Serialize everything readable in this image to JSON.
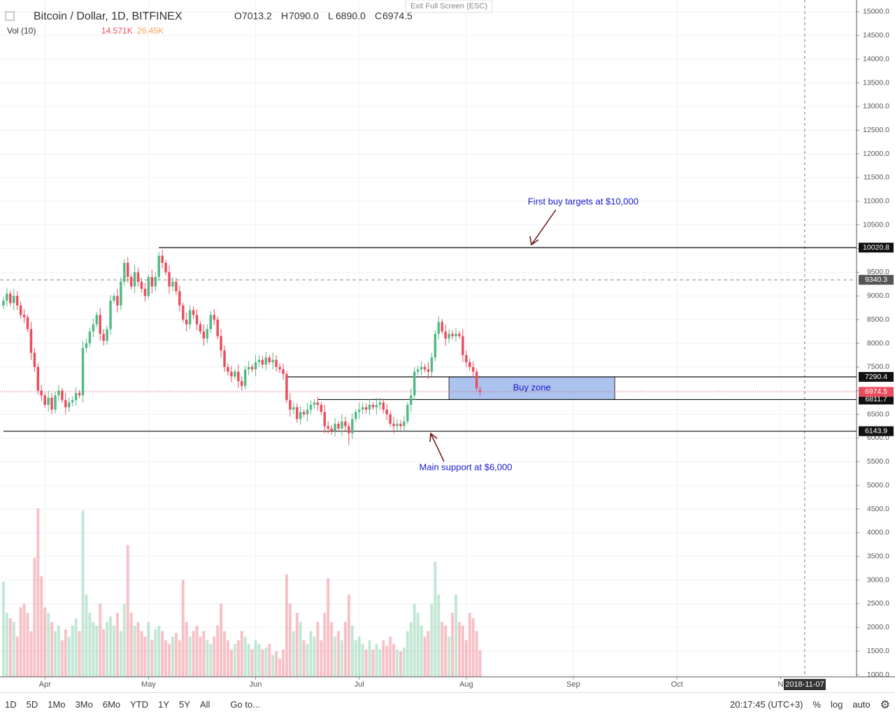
{
  "header": {
    "symbol": "Bitcoin / Dollar, 1D, BITFINEX",
    "ohlc": [
      {
        "key": "O",
        "value": "7013.2"
      },
      {
        "key": "H",
        "value": "7090.0"
      },
      {
        "key": "L",
        "value": "6890.0"
      },
      {
        "key": "C",
        "value": "6974.5"
      }
    ],
    "vol_title": "Vol (10)",
    "vol_value": "14.571K",
    "vol_ma": "26.45K",
    "exit": "Exit Full Screen (ESC)"
  },
  "chart_data": {
    "type": "candlestick",
    "ylim": [
      956,
      15250
    ],
    "xlim": [
      -1,
      247
    ],
    "volume_lim": [
      0,
      370
    ],
    "yticks": [
      {
        "value": 1000,
        "label": "1000.0"
      },
      {
        "value": 1500,
        "label": "1500.0"
      },
      {
        "value": 2000,
        "label": "2000.0"
      },
      {
        "value": 2500,
        "label": "2500.0"
      },
      {
        "value": 3000,
        "label": "3000.0"
      },
      {
        "value": 3500,
        "label": "3500.0"
      },
      {
        "value": 4000,
        "label": "4000.0"
      },
      {
        "value": 4500,
        "label": "4500.0"
      },
      {
        "value": 5000,
        "label": "5000.0"
      },
      {
        "value": 5500,
        "label": "5500.0"
      },
      {
        "value": 6000,
        "label": "6000.0"
      },
      {
        "value": 6500,
        "label": "6500.0"
      },
      {
        "value": 7000,
        "label": "7000.0"
      },
      {
        "value": 7500,
        "label": "7500.0"
      },
      {
        "value": 8000,
        "label": "8000.0"
      },
      {
        "value": 8500,
        "label": "8500.0"
      },
      {
        "value": 9000,
        "label": "9000.0"
      },
      {
        "value": 9500,
        "label": "9500.0"
      },
      {
        "value": 10000,
        "label": "10000.0"
      },
      {
        "value": 10500,
        "label": "10500.0"
      },
      {
        "value": 11000,
        "label": "11000.0"
      },
      {
        "value": 11500,
        "label": "11500.0"
      },
      {
        "value": 12000,
        "label": "12000.0"
      },
      {
        "value": 12500,
        "label": "12500.0"
      },
      {
        "value": 13000,
        "label": "13000.0"
      },
      {
        "value": 13500,
        "label": "13500.0"
      },
      {
        "value": 14000,
        "label": "14000.0"
      },
      {
        "value": 14500,
        "label": "14500.0"
      },
      {
        "value": 15000,
        "label": "15000.0"
      }
    ],
    "xticks": [
      {
        "value": 12,
        "label": "Apr"
      },
      {
        "value": 42,
        "label": "May"
      },
      {
        "value": 73,
        "label": "Jun"
      },
      {
        "value": 103,
        "label": "Jul"
      },
      {
        "value": 134,
        "label": "Aug"
      },
      {
        "value": 165,
        "label": "Sep"
      },
      {
        "value": 195,
        "label": "Oct"
      },
      {
        "value": 225,
        "label": "N"
      }
    ],
    "grid": true,
    "up_color": "#53b987",
    "down_color": "#eb4d5c",
    "crosshair": {
      "x": 232,
      "label": "2018-11-07"
    },
    "levels": [
      {
        "value": 10020.8,
        "start": 45
      },
      {
        "value": 7290.4,
        "start": 82
      },
      {
        "value": 6811.7,
        "start": 91
      },
      {
        "value": 6143.9,
        "start": 0
      }
    ],
    "dashed_level": 9340.3,
    "last_price": 6974.5,
    "buy_zone": {
      "label": "Buy zone",
      "x": [
        129,
        177
      ],
      "y": [
        6811.7,
        7290.4
      ]
    },
    "annotations": [
      "First buy targets at $10,000",
      "Main support at $6,000"
    ],
    "ohlc": [
      [
        8800,
        8980,
        8720,
        8900
      ],
      [
        8900,
        9170,
        8780,
        9050
      ],
      [
        9050,
        9110,
        8790,
        8850
      ],
      [
        8850,
        9150,
        8700,
        9000
      ],
      [
        9000,
        9100,
        8700,
        8800
      ],
      [
        8800,
        8880,
        8520,
        8600
      ],
      [
        8600,
        8720,
        8430,
        8550
      ],
      [
        8550,
        8610,
        8240,
        8300
      ],
      [
        8300,
        8450,
        7650,
        7800
      ],
      [
        7800,
        7900,
        7400,
        7500
      ],
      [
        7500,
        7580,
        6920,
        7000
      ],
      [
        7000,
        7120,
        6780,
        6900
      ],
      [
        6900,
        6960,
        6640,
        6700
      ],
      [
        6700,
        7000,
        6550,
        6850
      ],
      [
        6850,
        6950,
        6500,
        6600
      ],
      [
        6600,
        6980,
        6520,
        6900
      ],
      [
        6900,
        7120,
        6780,
        7000
      ],
      [
        7000,
        7060,
        6740,
        6800
      ],
      [
        6800,
        6950,
        6500,
        6650
      ],
      [
        6650,
        6850,
        6550,
        6750
      ],
      [
        6750,
        6880,
        6670,
        6800
      ],
      [
        6800,
        7070,
        6680,
        6950
      ],
      [
        6950,
        7010,
        6840,
        6900
      ],
      [
        6900,
        8050,
        6750,
        7900
      ],
      [
        7900,
        8100,
        7800,
        8000
      ],
      [
        8000,
        8330,
        7920,
        8250
      ],
      [
        8250,
        8520,
        8130,
        8400
      ],
      [
        8400,
        8660,
        8340,
        8600
      ],
      [
        8600,
        8750,
        8050,
        8200
      ],
      [
        8200,
        8300,
        7950,
        8050
      ],
      [
        8050,
        8380,
        7970,
        8300
      ],
      [
        8300,
        9020,
        8180,
        8900
      ],
      [
        8900,
        9060,
        8840,
        9000
      ],
      [
        9000,
        9150,
        8650,
        8800
      ],
      [
        8800,
        9400,
        8700,
        9300
      ],
      [
        9300,
        9780,
        9220,
        9700
      ],
      [
        9700,
        9820,
        9280,
        9400
      ],
      [
        9400,
        9460,
        9140,
        9200
      ],
      [
        9200,
        9650,
        9050,
        9500
      ],
      [
        9500,
        9600,
        9200,
        9300
      ],
      [
        9300,
        9380,
        9070,
        9150
      ],
      [
        9150,
        9270,
        8880,
        9000
      ],
      [
        9000,
        9460,
        8940,
        9400
      ],
      [
        9400,
        9550,
        9050,
        9200
      ],
      [
        9200,
        9500,
        9100,
        9400
      ],
      [
        9400,
        9930,
        9320,
        9850
      ],
      [
        9850,
        9970,
        9580,
        9700
      ],
      [
        9700,
        9760,
        9440,
        9500
      ],
      [
        9500,
        9650,
        9050,
        9200
      ],
      [
        9200,
        9400,
        9100,
        9300
      ],
      [
        9300,
        9380,
        9020,
        9100
      ],
      [
        9100,
        9220,
        8680,
        8800
      ],
      [
        8800,
        8860,
        8440,
        8500
      ],
      [
        8500,
        8650,
        8250,
        8400
      ],
      [
        8400,
        8800,
        8300,
        8700
      ],
      [
        8700,
        8780,
        8520,
        8600
      ],
      [
        8600,
        8720,
        8280,
        8400
      ],
      [
        8400,
        8460,
        8190,
        8250
      ],
      [
        8250,
        8400,
        7950,
        8100
      ],
      [
        8100,
        8400,
        8000,
        8300
      ],
      [
        8300,
        8680,
        8220,
        8600
      ],
      [
        8600,
        8720,
        8380,
        8500
      ],
      [
        8500,
        8560,
        8090,
        8150
      ],
      [
        8150,
        8300,
        7700,
        7850
      ],
      [
        7850,
        7950,
        7400,
        7500
      ],
      [
        7500,
        7580,
        7320,
        7400
      ],
      [
        7400,
        7520,
        7180,
        7300
      ],
      [
        7300,
        7460,
        7240,
        7400
      ],
      [
        7400,
        7550,
        7050,
        7200
      ],
      [
        7200,
        7300,
        7000,
        7100
      ],
      [
        7100,
        7530,
        7020,
        7450
      ],
      [
        7450,
        7620,
        7330,
        7500
      ],
      [
        7500,
        7560,
        7390,
        7450
      ],
      [
        7450,
        7750,
        7300,
        7600
      ],
      [
        7600,
        7750,
        7500,
        7650
      ],
      [
        7650,
        7730,
        7470,
        7550
      ],
      [
        7550,
        7820,
        7430,
        7700
      ],
      [
        7700,
        7760,
        7540,
        7600
      ],
      [
        7600,
        7800,
        7450,
        7650
      ],
      [
        7650,
        7750,
        7400,
        7500
      ],
      [
        7500,
        7580,
        7370,
        7450
      ],
      [
        7450,
        7570,
        7230,
        7350
      ],
      [
        7350,
        7410,
        6740,
        6800
      ],
      [
        6800,
        6950,
        6450,
        6600
      ],
      [
        6600,
        6750,
        6500,
        6650
      ],
      [
        6650,
        6730,
        6320,
        6400
      ],
      [
        6400,
        6670,
        6280,
        6550
      ],
      [
        6550,
        6610,
        6440,
        6500
      ],
      [
        6500,
        6750,
        6350,
        6600
      ],
      [
        6600,
        6800,
        6500,
        6700
      ],
      [
        6700,
        6830,
        6620,
        6750
      ],
      [
        6750,
        6870,
        6580,
        6700
      ],
      [
        6700,
        6760,
        6490,
        6550
      ],
      [
        6550,
        6700,
        6100,
        6250
      ],
      [
        6250,
        6350,
        6100,
        6200
      ],
      [
        6200,
        6280,
        6070,
        6150
      ],
      [
        6150,
        6420,
        6030,
        6300
      ],
      [
        6300,
        6360,
        6140,
        6200
      ],
      [
        6200,
        6500,
        6050,
        6350
      ],
      [
        6350,
        6450,
        6150,
        6250
      ],
      [
        6250,
        6330,
        5850,
        6100
      ],
      [
        6100,
        6520,
        5980,
        6400
      ],
      [
        6400,
        6610,
        6340,
        6550
      ],
      [
        6550,
        6750,
        6400,
        6600
      ],
      [
        6600,
        6750,
        6500,
        6650
      ],
      [
        6650,
        6730,
        6520,
        6600
      ],
      [
        6600,
        6820,
        6480,
        6700
      ],
      [
        6700,
        6760,
        6590,
        6650
      ],
      [
        6650,
        6850,
        6500,
        6700
      ],
      [
        6700,
        6850,
        6600,
        6750
      ],
      [
        6750,
        6830,
        6520,
        6600
      ],
      [
        6600,
        6720,
        6380,
        6500
      ],
      [
        6500,
        6560,
        6240,
        6300
      ],
      [
        6300,
        6450,
        6100,
        6250
      ],
      [
        6250,
        6400,
        6150,
        6300
      ],
      [
        6300,
        6380,
        6170,
        6250
      ],
      [
        6250,
        6470,
        6130,
        6350
      ],
      [
        6350,
        6760,
        6290,
        6700
      ],
      [
        6700,
        7050,
        6550,
        6900
      ],
      [
        6900,
        7500,
        6800,
        7400
      ],
      [
        7400,
        7530,
        7320,
        7450
      ],
      [
        7450,
        7620,
        7330,
        7500
      ],
      [
        7500,
        7560,
        7390,
        7450
      ],
      [
        7450,
        7600,
        7250,
        7400
      ],
      [
        7400,
        7800,
        7300,
        7700
      ],
      [
        7700,
        8280,
        7620,
        8200
      ],
      [
        8200,
        8570,
        8080,
        8450
      ],
      [
        8450,
        8510,
        8190,
        8250
      ],
      [
        8250,
        8400,
        7950,
        8100
      ],
      [
        8100,
        8300,
        8000,
        8200
      ],
      [
        8200,
        8280,
        8070,
        8150
      ],
      [
        8150,
        8320,
        8030,
        8200
      ],
      [
        8200,
        8260,
        8090,
        8150
      ],
      [
        8150,
        8300,
        7600,
        7750
      ],
      [
        7750,
        7850,
        7500,
        7600
      ],
      [
        7600,
        7680,
        7420,
        7500
      ],
      [
        7500,
        7620,
        7280,
        7400
      ],
      [
        7400,
        7460,
        6990,
        7050
      ],
      [
        7013.2,
        7090,
        6890,
        6974.5
      ]
    ],
    "volume": [
      52,
      35,
      32,
      30,
      22,
      38,
      40,
      35,
      25,
      65,
      92,
      55,
      38,
      35,
      30,
      25,
      28,
      20,
      26,
      22,
      28,
      32,
      25,
      91,
      45,
      35,
      30,
      28,
      40,
      26,
      30,
      33,
      28,
      35,
      25,
      40,
      72,
      35,
      28,
      30,
      25,
      22,
      30,
      20,
      26,
      28,
      25,
      20,
      18,
      22,
      24,
      20,
      53,
      30,
      22,
      25,
      28,
      22,
      25,
      20,
      18,
      22,
      28,
      40,
      25,
      20,
      15,
      18,
      20,
      25,
      22,
      18,
      15,
      20,
      18,
      15,
      16,
      18,
      12,
      14,
      10,
      15,
      56,
      40,
      25,
      35,
      30,
      20,
      18,
      25,
      22,
      30,
      20,
      35,
      54,
      30,
      22,
      25,
      20,
      30,
      45,
      28,
      20,
      22,
      18,
      15,
      20,
      15,
      18,
      15,
      20,
      17,
      22,
      18,
      15,
      14,
      16,
      25,
      30,
      40,
      35,
      28,
      22,
      25,
      40,
      63,
      45,
      30,
      28,
      22,
      35,
      45,
      30,
      28,
      20,
      35,
      32,
      25,
      14.571
    ]
  },
  "toolbar": {
    "ranges": [
      "1D",
      "5D",
      "1Mo",
      "3Mo",
      "6Mo",
      "YTD",
      "1Y",
      "5Y",
      "All"
    ],
    "goto": "Go to...",
    "time": "20:17:45 (UTC+3)",
    "percent": "%",
    "log": "log",
    "auto": "auto"
  }
}
